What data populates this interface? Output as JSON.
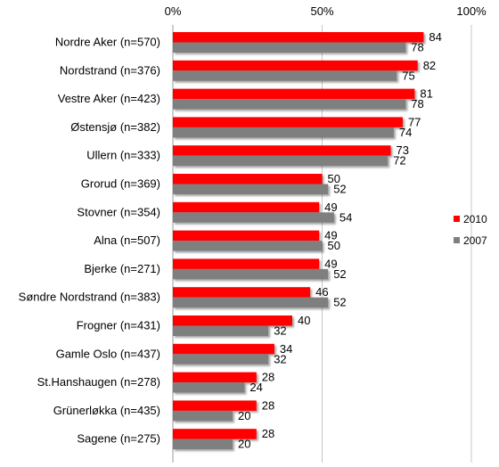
{
  "chart_data": {
    "type": "bar",
    "orientation": "horizontal",
    "categories": [
      "Nordre Aker  (n=570)",
      "Nordstrand (n=376)",
      "Vestre Aker (n=423)",
      "Østensjø (n=382)",
      "Ullern (n=333)",
      "Grorud (n=369)",
      "Stovner (n=354)",
      "Alna (n=507)",
      "Bjerke (n=271)",
      "Søndre Nordstrand (n=383)",
      "Frogner (n=431)",
      "Gamle Oslo (n=437)",
      "St.Hanshaugen (n=278)",
      "Grünerløkka (n=435)",
      "Sagene (n=275)"
    ],
    "series": [
      {
        "name": "2010",
        "color": "#ff0000",
        "values": [
          84,
          82,
          81,
          77,
          73,
          50,
          49,
          49,
          49,
          46,
          40,
          34,
          28,
          28,
          28
        ]
      },
      {
        "name": "2007",
        "color": "#7f7f7f",
        "values": [
          78,
          75,
          78,
          74,
          72,
          52,
          54,
          50,
          52,
          52,
          32,
          32,
          24,
          20,
          20
        ]
      }
    ],
    "xlim": [
      0,
      100
    ],
    "xticks": [
      "0%",
      "50%",
      "100%"
    ],
    "grid": "vertical",
    "legend_position": "right",
    "title": "",
    "xlabel": "",
    "ylabel": ""
  }
}
